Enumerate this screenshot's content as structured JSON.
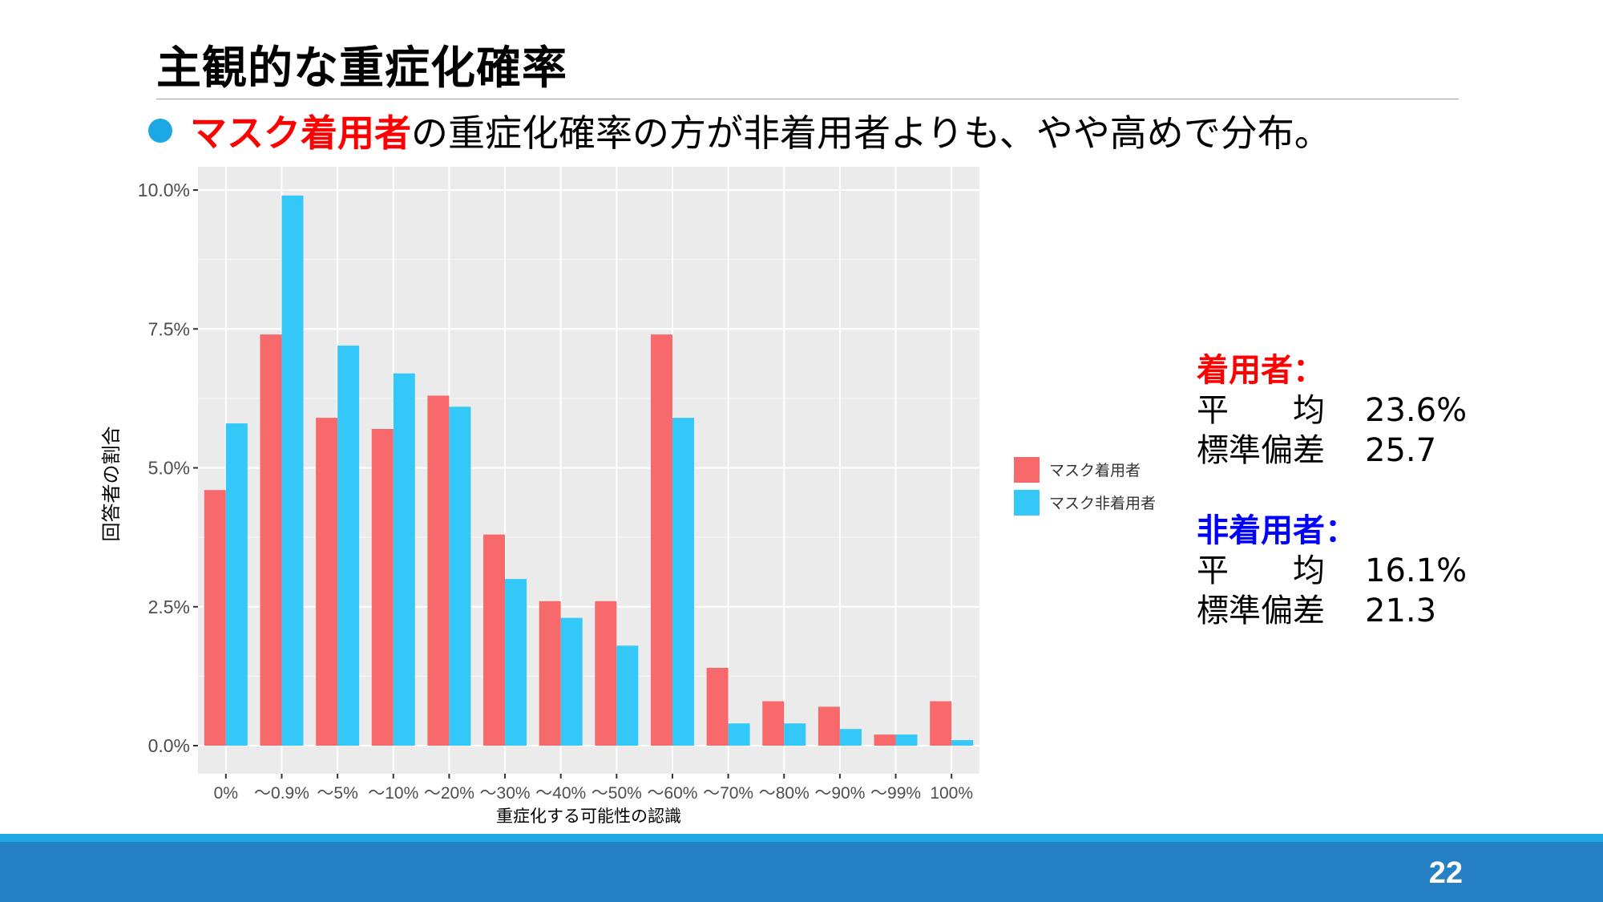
{
  "slide": {
    "title": "主観的な重症化確率",
    "bullet_emphasis": "マスク着用者",
    "bullet_rest": "の重症化確率の方が非着用者よりも、やや高めで分布。",
    "page_number": "22",
    "colors": {
      "emphasis": "#ff0000",
      "bullet": "#1aa7e4",
      "footer": "#2681c4",
      "footer_line": "#1aa7e4",
      "nonwearer_head": "#0000ff"
    }
  },
  "stats": {
    "wearers": {
      "header": "着用者：",
      "mean_label": "平　　均",
      "mean_value": "23.6%",
      "sd_label": "標準偏差",
      "sd_value": "25.7"
    },
    "nonwearers": {
      "header": "非着用者：",
      "mean_label": "平　　均",
      "mean_value": "16.1%",
      "sd_label": "標準偏差",
      "sd_value": "21.3"
    }
  },
  "chart_data": {
    "type": "bar",
    "xlabel": "重症化する可能性の認識",
    "ylabel": "回答者の割合",
    "categories": [
      "0%",
      "〜0.9%",
      "〜5%",
      "〜10%",
      "〜20%",
      "〜30%",
      "〜40%",
      "〜50%",
      "〜60%",
      "〜70%",
      "〜80%",
      "〜90%",
      "〜99%",
      "100%"
    ],
    "ylim": [
      0,
      10
    ],
    "yticks": [
      0,
      2.5,
      5,
      7.5,
      10
    ],
    "ytick_labels": [
      "0.0%",
      "2.5%",
      "5.0%",
      "7.5%",
      "10.0%"
    ],
    "grid": true,
    "legend_position": "right",
    "series": [
      {
        "name": "マスク着用者",
        "color": "#f8696b",
        "values": [
          4.6,
          7.4,
          5.9,
          5.7,
          6.3,
          3.8,
          2.6,
          2.6,
          7.4,
          1.4,
          0.8,
          0.7,
          0.2,
          0.8
        ]
      },
      {
        "name": "マスク非着用者",
        "color": "#33c8f8",
        "values": [
          5.8,
          9.9,
          7.2,
          6.7,
          6.1,
          3.0,
          2.3,
          1.8,
          5.9,
          0.4,
          0.4,
          0.3,
          0.2,
          0.1
        ]
      }
    ]
  }
}
